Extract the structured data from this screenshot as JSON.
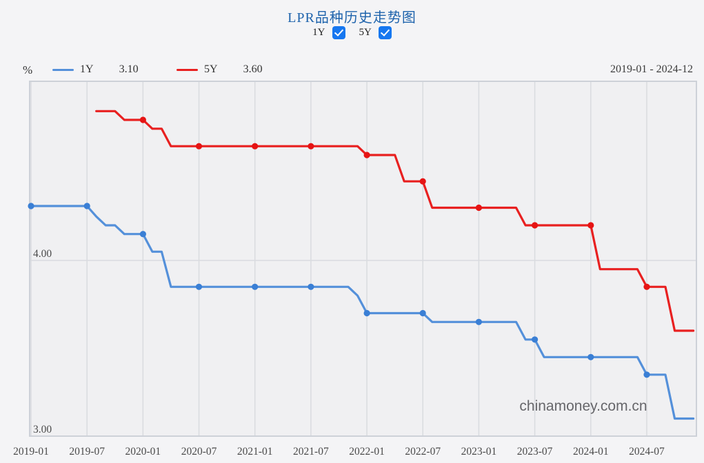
{
  "title": {
    "text": "LPR品种历史走势图"
  },
  "controls": {
    "items": [
      {
        "label": "1Y",
        "checked": true
      },
      {
        "label": "5Y",
        "checked": true
      }
    ]
  },
  "legend": {
    "unit": "%",
    "items": [
      {
        "label": "1Y",
        "latest": "3.10",
        "color": "#5490da"
      },
      {
        "label": "5Y",
        "latest": "3.60",
        "color": "#e82020"
      }
    ],
    "range": "2019-01 - 2024-12"
  },
  "watermark": "chinamoney.com.cn",
  "colors": {
    "title": "#1e63ac",
    "checkbox": "#1677f0",
    "page_bg": "#f4f4f6",
    "plot_bg": "#f0f0f2",
    "plot_border": "#cdd1d8",
    "gridline": "#d9dbdf",
    "line_1y": "#5490da",
    "marker_1y": "#3a7fd5",
    "line_5y": "#e82020",
    "marker_5y": "#e61414"
  },
  "chart_data": {
    "type": "line",
    "title": "LPR品种历史走势图",
    "xlabel": "",
    "ylabel": "%",
    "x_start": "2019-01",
    "x_end": "2024-12",
    "months_total": 72,
    "x_tick_interval_months": 6,
    "x_tick_labels": [
      "2019-01",
      "2019-07",
      "2020-01",
      "2020-07",
      "2021-01",
      "2021-07",
      "2022-01",
      "2022-07",
      "2023-01",
      "2023-07",
      "2024-01",
      "2024-07"
    ],
    "y_ticks": [
      {
        "value": 3.0,
        "label": "3.00"
      },
      {
        "value": 4.0,
        "label": "4.00"
      }
    ],
    "ylim": [
      3.0,
      5.02
    ],
    "grid": true,
    "marker_every_months": 6,
    "series": [
      {
        "name": "1Y",
        "values": [
          4.31,
          4.31,
          4.31,
          4.31,
          4.31,
          4.31,
          4.31,
          4.25,
          4.2,
          4.2,
          4.15,
          4.15,
          4.15,
          4.05,
          4.05,
          3.85,
          3.85,
          3.85,
          3.85,
          3.85,
          3.85,
          3.85,
          3.85,
          3.85,
          3.85,
          3.85,
          3.85,
          3.85,
          3.85,
          3.85,
          3.85,
          3.85,
          3.85,
          3.85,
          3.85,
          3.8,
          3.7,
          3.7,
          3.7,
          3.7,
          3.7,
          3.7,
          3.7,
          3.65,
          3.65,
          3.65,
          3.65,
          3.65,
          3.65,
          3.65,
          3.65,
          3.65,
          3.65,
          3.55,
          3.55,
          3.45,
          3.45,
          3.45,
          3.45,
          3.45,
          3.45,
          3.45,
          3.45,
          3.45,
          3.45,
          3.45,
          3.35,
          3.35,
          3.35,
          3.1,
          3.1,
          3.1
        ]
      },
      {
        "name": "5Y",
        "values": [
          null,
          null,
          null,
          null,
          null,
          null,
          null,
          4.85,
          4.85,
          4.85,
          4.8,
          4.8,
          4.8,
          4.75,
          4.75,
          4.65,
          4.65,
          4.65,
          4.65,
          4.65,
          4.65,
          4.65,
          4.65,
          4.65,
          4.65,
          4.65,
          4.65,
          4.65,
          4.65,
          4.65,
          4.65,
          4.65,
          4.65,
          4.65,
          4.65,
          4.65,
          4.6,
          4.6,
          4.6,
          4.6,
          4.45,
          4.45,
          4.45,
          4.3,
          4.3,
          4.3,
          4.3,
          4.3,
          4.3,
          4.3,
          4.3,
          4.3,
          4.3,
          4.2,
          4.2,
          4.2,
          4.2,
          4.2,
          4.2,
          4.2,
          4.2,
          3.95,
          3.95,
          3.95,
          3.95,
          3.95,
          3.85,
          3.85,
          3.85,
          3.6,
          3.6,
          3.6
        ]
      }
    ]
  }
}
